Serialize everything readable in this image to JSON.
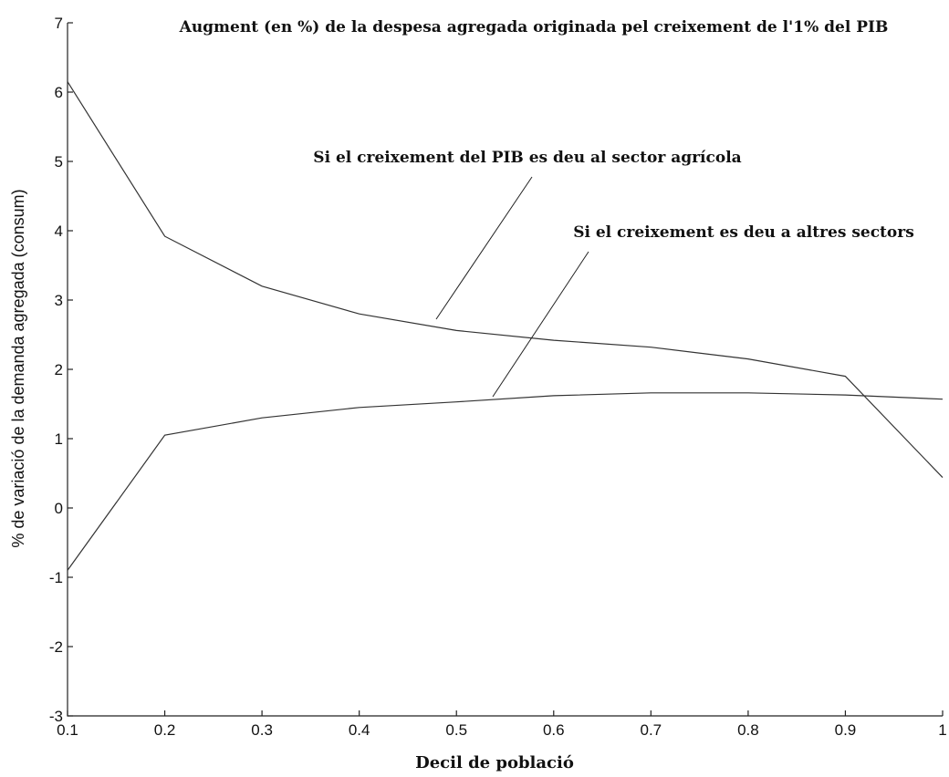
{
  "chart_data": {
    "type": "line",
    "title": "Augment (en %) de la despesa agregada originada pel creixement de l'1% del PIB",
    "xlabel": "Decil de població",
    "ylabel": "% de variació de la demanda agregada (consum)",
    "x": [
      0.1,
      0.2,
      0.3,
      0.4,
      0.5,
      0.6,
      0.7,
      0.8,
      0.9,
      1.0
    ],
    "xlim": [
      0.1,
      1.0
    ],
    "ylim": [
      -3,
      7
    ],
    "xticks": [
      "0.1",
      "0.2",
      "0.3",
      "0.4",
      "0.5",
      "0.6",
      "0.7",
      "0.8",
      "0.9",
      "1"
    ],
    "yticks": [
      "-3",
      "-2",
      "-1",
      "0",
      "1",
      "2",
      "3",
      "4",
      "5",
      "6",
      "7"
    ],
    "grid": false,
    "series": [
      {
        "values": [
          6.15,
          3.92,
          3.2,
          2.8,
          2.56,
          2.42,
          2.32,
          2.15,
          1.9,
          0.44
        ]
      },
      {
        "values": [
          -0.9,
          1.05,
          1.3,
          1.45,
          1.53,
          1.62,
          1.66,
          1.66,
          1.63,
          1.57
        ]
      }
    ],
    "annotations": [
      {
        "text": "Si el creixement del PIB es deu al sector agrícola",
        "series": 0
      },
      {
        "text": "Si el creixement es deu a altres sectors",
        "series": 1
      }
    ]
  }
}
